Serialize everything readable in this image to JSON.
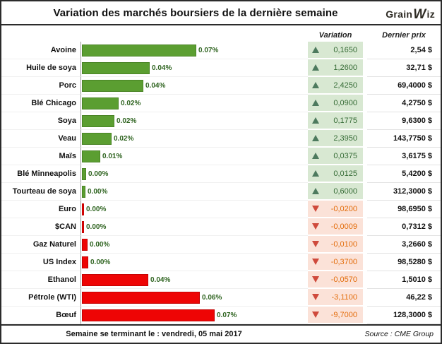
{
  "title": "Variation des marchés boursiers de la dernière semaine",
  "logo": {
    "prefix": "Grain",
    "w": "W",
    "suffix": "iz"
  },
  "columns": {
    "variation": "Variation",
    "price": "Dernier prix"
  },
  "footer": {
    "week": "Semaine se terminant le :  vendredi, 05 mai 2017",
    "source": "Source : CME Group"
  },
  "colors": {
    "frame_border": "#2b2b2b",
    "up_bar": "#5b9e31",
    "up_bar_border": "#4a8426",
    "down_bar": "#ee0505",
    "down_bar_border": "#c40303",
    "up_bg": "#d8e8d2",
    "down_bg": "#fbe2d8",
    "up_text": "#356b35",
    "down_text": "#e36c0a",
    "up_tri": "#4d7a5e",
    "down_tri": "#cf4a3c",
    "pct_text": "#2f6420"
  },
  "chart_data": {
    "type": "bar",
    "orientation": "horizontal",
    "title": "Variation des marchés boursiers de la dernière semaine",
    "legend": false,
    "grid": false,
    "rows": [
      {
        "label": "Avoine",
        "pct_label": "0.07%",
        "direction": "up",
        "variation": "0,1650",
        "price": "2,54 $",
        "change_ratio": 0.065
      },
      {
        "label": "Huile de soya",
        "pct_label": "0.04%",
        "direction": "up",
        "variation": "1,2600",
        "price": "32,71 $",
        "change_ratio": 0.0385
      },
      {
        "label": "Porc",
        "pct_label": "0.04%",
        "direction": "up",
        "variation": "2,4250",
        "price": "69,4000 $",
        "change_ratio": 0.0349
      },
      {
        "label": "Blé Chicago",
        "pct_label": "0.02%",
        "direction": "up",
        "variation": "0,0900",
        "price": "4,2750 $",
        "change_ratio": 0.0211
      },
      {
        "label": "Soya",
        "pct_label": "0.02%",
        "direction": "up",
        "variation": "0,1775",
        "price": "9,6300 $",
        "change_ratio": 0.0184
      },
      {
        "label": "Veau",
        "pct_label": "0.02%",
        "direction": "up",
        "variation": "2,3950",
        "price": "143,7750 $",
        "change_ratio": 0.0167
      },
      {
        "label": "Maïs",
        "pct_label": "0.01%",
        "direction": "up",
        "variation": "0,0375",
        "price": "3,6175 $",
        "change_ratio": 0.0104
      },
      {
        "label": "Blé Minneapolis",
        "pct_label": "0.00%",
        "direction": "up",
        "variation": "0,0125",
        "price": "5,4200 $",
        "change_ratio": 0.0023
      },
      {
        "label": "Tourteau de soya",
        "pct_label": "0.00%",
        "direction": "up",
        "variation": "0,6000",
        "price": "312,3000 $",
        "change_ratio": 0.0019
      },
      {
        "label": "Euro",
        "pct_label": "0.00%",
        "direction": "down",
        "variation": "-0,0200",
        "price": "98,6950 $",
        "change_ratio": -0.0002
      },
      {
        "label": "$CAN",
        "pct_label": "0.00%",
        "direction": "down",
        "variation": "-0,0009",
        "price": "0,7312 $",
        "change_ratio": -0.0012
      },
      {
        "label": "Gaz Naturel",
        "pct_label": "0.00%",
        "direction": "down",
        "variation": "-0,0100",
        "price": "3,2660 $",
        "change_ratio": -0.0031
      },
      {
        "label": "US Index",
        "pct_label": "0.00%",
        "direction": "down",
        "variation": "-0,3700",
        "price": "98,5280 $",
        "change_ratio": -0.0038
      },
      {
        "label": "Ethanol",
        "pct_label": "0.04%",
        "direction": "down",
        "variation": "-0,0570",
        "price": "1,5010 $",
        "change_ratio": -0.038
      },
      {
        "label": "Pétrole (WTI)",
        "pct_label": "0.06%",
        "direction": "down",
        "variation": "-3,1100",
        "price": "46,22 $",
        "change_ratio": -0.0673
      },
      {
        "label": "Bœuf",
        "pct_label": "0.07%",
        "direction": "down",
        "variation": "-9,7000",
        "price": "128,3000 $",
        "change_ratio": -0.0756
      }
    ]
  }
}
